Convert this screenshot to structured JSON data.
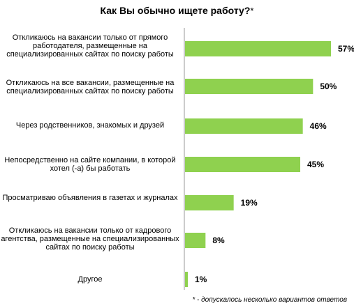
{
  "chart_data": {
    "type": "bar",
    "orientation": "horizontal",
    "title": "Как Вы обычно ищете работу?",
    "title_mark": "*",
    "categories": [
      "Откликаюсь на вакансии только от прямого работодателя, размещенные на специализированных сайтах по поиску работы",
      "Откликаюсь на все вакансии, размещенные на специализированных сайтах по поиску работы",
      "Через родственников, знакомых и друзей",
      "Непосредственно на сайте компании, в которой хотел (-а) бы работать",
      "Просматриваю объявления в газетах и журналах",
      "Откликаюсь на вакансии только от кадрового агентства, размещенные на специализированных сайтах по поиску работы",
      "Другое"
    ],
    "values": [
      57,
      50,
      46,
      45,
      19,
      8,
      1
    ],
    "value_labels": [
      "57%",
      "50%",
      "46%",
      "45%",
      "19%",
      "8%",
      "1%"
    ],
    "unit": "%",
    "color": "#8fd14f",
    "grid": false,
    "legend": "none",
    "footnote": "* - допускалось несколько вариантов ответов"
  }
}
